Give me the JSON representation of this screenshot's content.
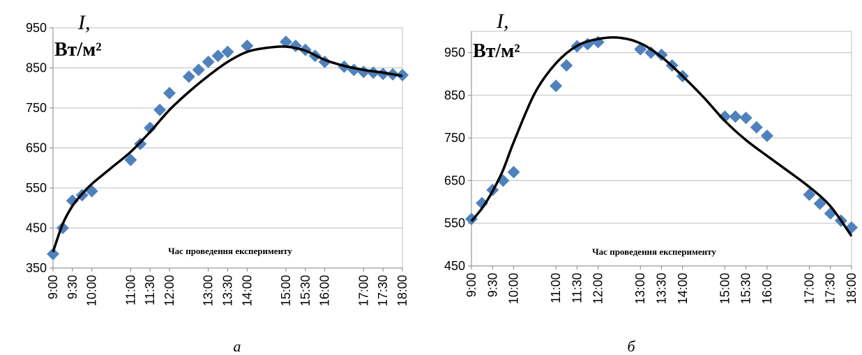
{
  "chart_data": [
    {
      "type": "scatter",
      "panel": "а",
      "ylabel_symbol": "I,",
      "ylabel_unit": "Вт/м²",
      "xlabel": "Час проведення експерименту",
      "ylim": [
        350,
        950
      ],
      "yticks": [
        350,
        450,
        550,
        650,
        750,
        850,
        950
      ],
      "xticks": [
        "9:00",
        "9:30",
        "10:00",
        "11:00",
        "11:30",
        "12:00",
        "13:00",
        "13:30",
        "14:00",
        "15:00",
        "15:30",
        "16:00",
        "17:00",
        "17:30",
        "18:00"
      ],
      "xrange_min": [
        540,
        1080
      ],
      "grid": true,
      "series": [
        {
          "kind": "points",
          "color": "#4f81bd",
          "x": [
            "9:00",
            "9:15",
            "9:30",
            "9:45",
            "10:00",
            "11:00",
            "11:15",
            "11:30",
            "11:45",
            "12:00",
            "12:30",
            "12:45",
            "13:00",
            "13:15",
            "13:30",
            "14:00",
            "15:00",
            "15:15",
            "15:30",
            "15:45",
            "16:00",
            "16:30",
            "16:45",
            "17:00",
            "17:15",
            "17:30",
            "17:45",
            "18:00"
          ],
          "y": [
            385,
            450,
            518,
            532,
            542,
            620,
            660,
            700,
            745,
            787,
            828,
            845,
            865,
            880,
            890,
            905,
            915,
            905,
            895,
            880,
            865,
            853,
            845,
            840,
            838,
            835,
            834,
            832
          ]
        },
        {
          "kind": "trend",
          "color": "#000000",
          "x": [
            "9:00",
            "9:15",
            "9:30",
            "9:45",
            "10:00",
            "10:30",
            "11:00",
            "11:30",
            "12:00",
            "12:30",
            "13:00",
            "13:30",
            "14:00",
            "14:30",
            "15:00",
            "15:30",
            "16:00",
            "16:30",
            "17:00",
            "17:30",
            "18:00"
          ],
          "y": [
            390,
            460,
            505,
            535,
            560,
            600,
            640,
            690,
            745,
            790,
            830,
            865,
            890,
            900,
            903,
            893,
            870,
            855,
            845,
            838,
            830
          ]
        }
      ]
    },
    {
      "type": "scatter",
      "panel": "б",
      "ylabel_symbol": "I,",
      "ylabel_unit": "Вт/м²",
      "xlabel": "Час проведення експерименту",
      "ylim": [
        450,
        1000
      ],
      "yticks": [
        450,
        550,
        650,
        750,
        850,
        950
      ],
      "xticks": [
        "9:00",
        "9:30",
        "10:00",
        "11:00",
        "11:30",
        "12:00",
        "13:00",
        "13:30",
        "14:00",
        "15:00",
        "15:30",
        "16:00",
        "17:00",
        "17:30",
        "18:00"
      ],
      "xrange_min": [
        540,
        1080
      ],
      "grid": true,
      "series": [
        {
          "kind": "points",
          "color": "#4f81bd",
          "x": [
            "9:00",
            "9:15",
            "9:30",
            "9:45",
            "10:00",
            "11:00",
            "11:15",
            "11:30",
            "11:45",
            "12:00",
            "13:00",
            "13:15",
            "13:30",
            "13:45",
            "14:00",
            "15:00",
            "15:15",
            "15:30",
            "15:45",
            "16:00",
            "17:00",
            "17:15",
            "17:30",
            "17:45",
            "18:00"
          ],
          "y": [
            560,
            597,
            628,
            650,
            670,
            872,
            920,
            965,
            970,
            975,
            958,
            950,
            945,
            920,
            895,
            800,
            800,
            797,
            775,
            755,
            617,
            596,
            573,
            556,
            540
          ]
        },
        {
          "kind": "trend",
          "color": "#000000",
          "x": [
            "9:00",
            "9:15",
            "9:30",
            "9:45",
            "10:00",
            "10:30",
            "11:00",
            "11:30",
            "12:00",
            "12:30",
            "13:00",
            "13:30",
            "14:00",
            "14:30",
            "15:00",
            "15:30",
            "16:00",
            "16:30",
            "17:00",
            "17:30",
            "18:00"
          ],
          "y": [
            555,
            585,
            625,
            675,
            740,
            855,
            925,
            966,
            982,
            985,
            972,
            940,
            895,
            845,
            790,
            745,
            708,
            672,
            635,
            590,
            520
          ]
        }
      ]
    }
  ]
}
